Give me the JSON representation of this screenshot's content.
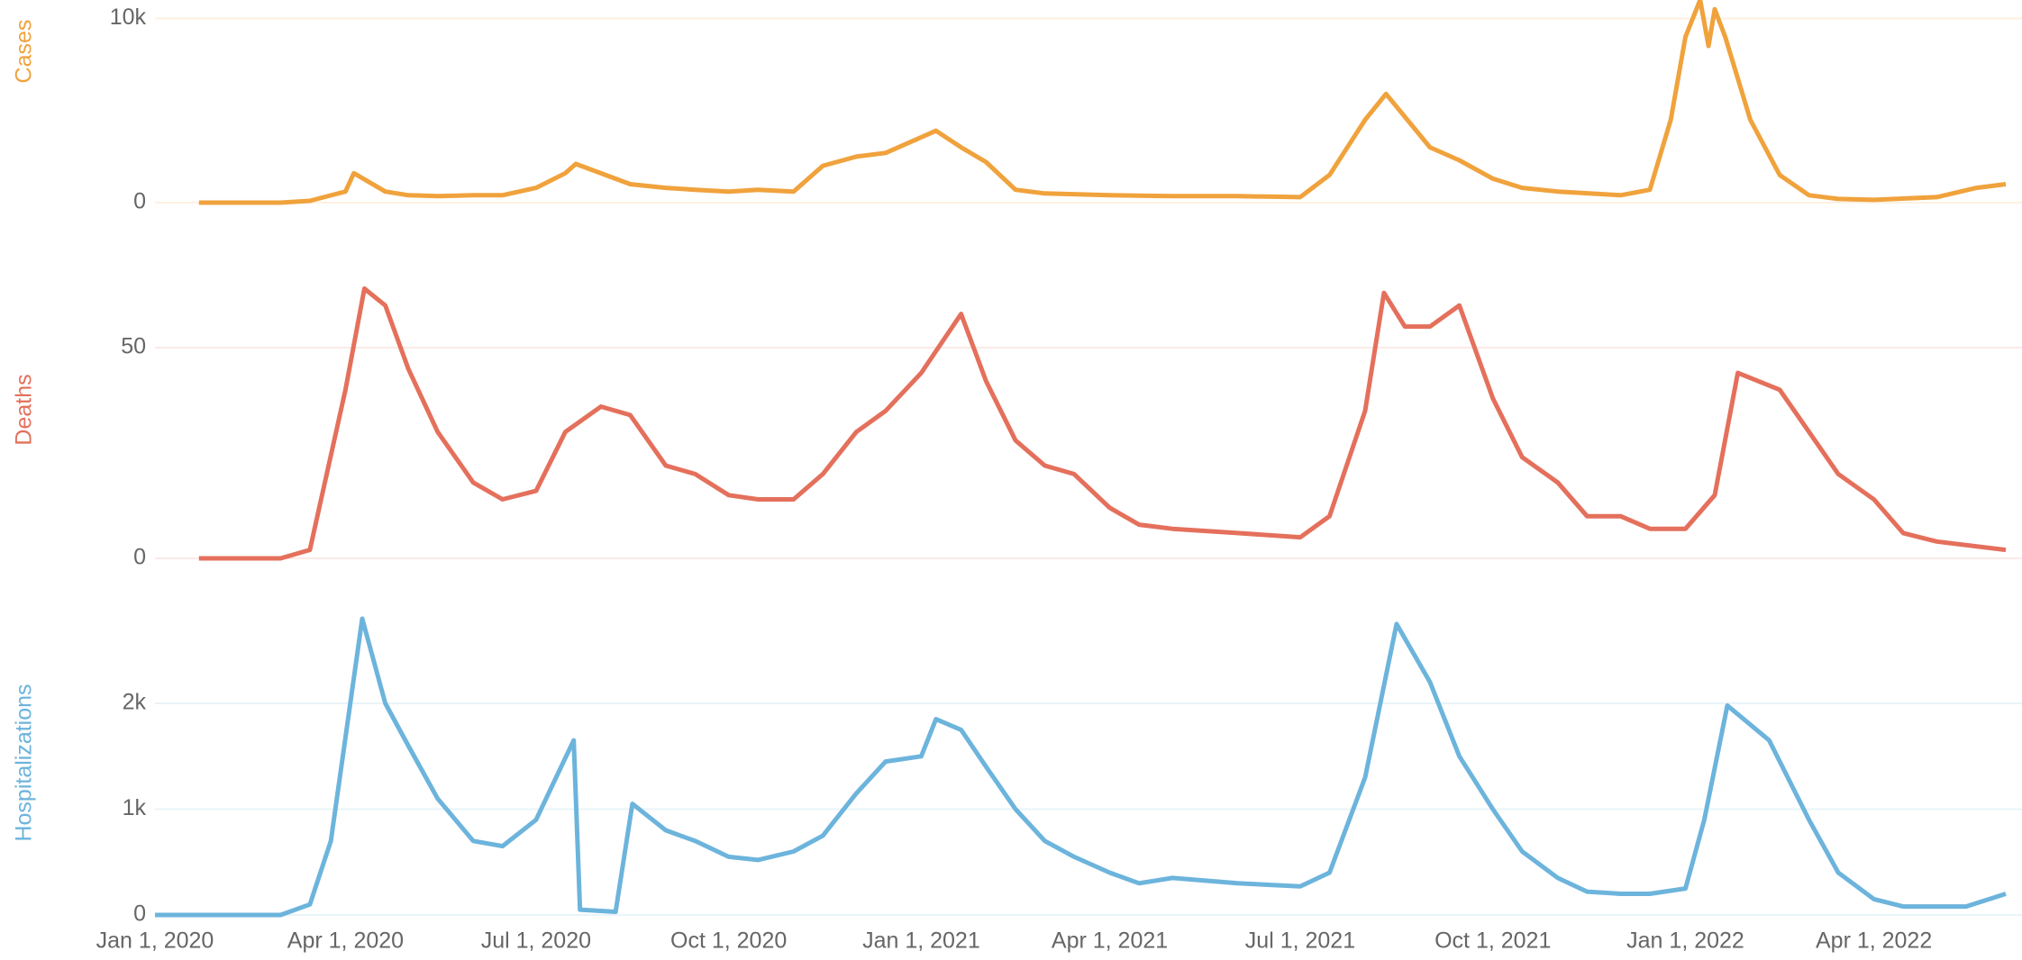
{
  "chart_data": [
    {
      "type": "line",
      "ylabel": "Cases",
      "color": "#f0a23c",
      "xlim": [
        "2020-01-01",
        "2022-06-03"
      ],
      "ylim": [
        0,
        11000
      ],
      "yticks": [
        0,
        {
          "value": 10000,
          "label": "10k"
        }
      ],
      "grid": true,
      "x": [
        "2020-01-22",
        "2020-02-15",
        "2020-03-01",
        "2020-03-15",
        "2020-04-01",
        "2020-04-05",
        "2020-04-20",
        "2020-05-01",
        "2020-05-15",
        "2020-06-01",
        "2020-06-15",
        "2020-07-01",
        "2020-07-15",
        "2020-07-20",
        "2020-08-15",
        "2020-09-01",
        "2020-09-15",
        "2020-10-01",
        "2020-10-15",
        "2020-11-01",
        "2020-11-15",
        "2020-12-01",
        "2020-12-15",
        "2021-01-08",
        "2021-01-20",
        "2021-02-01",
        "2021-02-15",
        "2021-03-01",
        "2021-04-01",
        "2021-05-01",
        "2021-06-01",
        "2021-07-01",
        "2021-07-15",
        "2021-08-01",
        "2021-08-11",
        "2021-09-01",
        "2021-09-15",
        "2021-10-01",
        "2021-10-15",
        "2021-11-01",
        "2021-12-01",
        "2021-12-15",
        "2021-12-25",
        "2022-01-01",
        "2022-01-08",
        "2022-01-12",
        "2022-01-15",
        "2022-01-20",
        "2022-02-01",
        "2022-02-15",
        "2022-03-01",
        "2022-03-15",
        "2022-04-01",
        "2022-05-01",
        "2022-05-20",
        "2022-06-03"
      ],
      "values": [
        0,
        0,
        0,
        100,
        600,
        1600,
        600,
        400,
        350,
        400,
        400,
        800,
        1600,
        2100,
        1000,
        800,
        700,
        600,
        700,
        600,
        2000,
        2500,
        2700,
        3900,
        3000,
        2200,
        700,
        500,
        400,
        350,
        350,
        300,
        1500,
        4500,
        5900,
        3000,
        2300,
        1300,
        800,
        600,
        400,
        700,
        4500,
        9000,
        11000,
        8500,
        10500,
        9000,
        4500,
        1500,
        400,
        200,
        150,
        300,
        800,
        1000
      ]
    },
    {
      "type": "line",
      "ylabel": "Deaths",
      "color": "#e4705c",
      "xlim": [
        "2020-01-01",
        "2022-06-03"
      ],
      "ylim": [
        0,
        75
      ],
      "yticks": [
        0,
        50
      ],
      "grid": true,
      "x": [
        "2020-01-22",
        "2020-03-01",
        "2020-03-15",
        "2020-04-01",
        "2020-04-10",
        "2020-04-20",
        "2020-05-01",
        "2020-05-15",
        "2020-06-01",
        "2020-06-15",
        "2020-07-01",
        "2020-07-15",
        "2020-08-01",
        "2020-08-15",
        "2020-09-01",
        "2020-09-15",
        "2020-10-01",
        "2020-10-15",
        "2020-11-01",
        "2020-11-15",
        "2020-12-01",
        "2020-12-15",
        "2021-01-01",
        "2021-01-20",
        "2021-02-01",
        "2021-02-15",
        "2021-03-01",
        "2021-03-15",
        "2021-04-01",
        "2021-04-15",
        "2021-05-01",
        "2021-06-01",
        "2021-07-01",
        "2021-07-15",
        "2021-08-01",
        "2021-08-10",
        "2021-08-20",
        "2021-09-01",
        "2021-09-15",
        "2021-10-01",
        "2021-10-15",
        "2021-11-01",
        "2021-11-15",
        "2021-12-01",
        "2021-12-15",
        "2022-01-01",
        "2022-01-15",
        "2022-01-26",
        "2022-02-15",
        "2022-03-01",
        "2022-03-15",
        "2022-04-01",
        "2022-04-15",
        "2022-05-01",
        "2022-06-03"
      ],
      "values": [
        0,
        0,
        2,
        40,
        64,
        60,
        45,
        30,
        18,
        14,
        16,
        30,
        36,
        34,
        22,
        20,
        15,
        14,
        14,
        20,
        30,
        35,
        44,
        58,
        42,
        28,
        22,
        20,
        12,
        8,
        7,
        6,
        5,
        10,
        35,
        63,
        55,
        55,
        60,
        38,
        24,
        18,
        10,
        10,
        7,
        7,
        15,
        44,
        40,
        30,
        20,
        14,
        6,
        4,
        2
      ]
    },
    {
      "type": "line",
      "ylabel": "Hospitalizations",
      "color": "#6cb4dc",
      "xlim": [
        "2020-01-01",
        "2022-06-03"
      ],
      "ylim": [
        0,
        3000
      ],
      "yticks": [
        0,
        {
          "value": 1000,
          "label": "1k"
        },
        {
          "value": 2000,
          "label": "2k"
        }
      ],
      "grid": true,
      "xticks": [
        {
          "value": "2020-01-01",
          "label": "Jan 1, 2020"
        },
        {
          "value": "2020-04-01",
          "label": "Apr 1, 2020"
        },
        {
          "value": "2020-07-01",
          "label": "Jul 1, 2020"
        },
        {
          "value": "2020-10-01",
          "label": "Oct 1, 2020"
        },
        {
          "value": "2021-01-01",
          "label": "Jan 1, 2021"
        },
        {
          "value": "2021-04-01",
          "label": "Apr 1, 2021"
        },
        {
          "value": "2021-07-01",
          "label": "Jul 1, 2021"
        },
        {
          "value": "2021-10-01",
          "label": "Oct 1, 2021"
        },
        {
          "value": "2022-01-01",
          "label": "Jan 1, 2022"
        },
        {
          "value": "2022-04-01",
          "label": "Apr 1, 2022"
        }
      ],
      "x": [
        "2020-01-01",
        "2020-03-01",
        "2020-03-15",
        "2020-03-25",
        "2020-04-09",
        "2020-04-20",
        "2020-05-01",
        "2020-05-15",
        "2020-06-01",
        "2020-06-15",
        "2020-07-01",
        "2020-07-19",
        "2020-07-22",
        "2020-08-08",
        "2020-08-16",
        "2020-09-01",
        "2020-09-15",
        "2020-10-01",
        "2020-10-15",
        "2020-11-01",
        "2020-11-15",
        "2020-12-01",
        "2020-12-15",
        "2021-01-01",
        "2021-01-08",
        "2021-01-20",
        "2021-02-01",
        "2021-02-15",
        "2021-03-01",
        "2021-03-15",
        "2021-04-01",
        "2021-04-15",
        "2021-05-01",
        "2021-06-01",
        "2021-07-01",
        "2021-07-15",
        "2021-08-01",
        "2021-08-16",
        "2021-09-01",
        "2021-09-15",
        "2021-10-01",
        "2021-10-15",
        "2021-11-01",
        "2021-11-15",
        "2021-12-01",
        "2021-12-15",
        "2022-01-01",
        "2022-01-10",
        "2022-01-21",
        "2022-02-10",
        "2022-03-01",
        "2022-03-15",
        "2022-04-01",
        "2022-04-15",
        "2022-05-15",
        "2022-06-03"
      ],
      "values": [
        0,
        0,
        100,
        700,
        2800,
        2000,
        1600,
        1100,
        700,
        650,
        900,
        1650,
        50,
        30,
        1050,
        800,
        700,
        550,
        520,
        600,
        750,
        1150,
        1450,
        1500,
        1850,
        1750,
        1400,
        1000,
        700,
        550,
        400,
        300,
        350,
        300,
        270,
        400,
        1300,
        2750,
        2200,
        1500,
        1000,
        600,
        350,
        220,
        200,
        200,
        250,
        900,
        1980,
        1650,
        900,
        400,
        150,
        80,
        80,
        200
      ]
    }
  ]
}
